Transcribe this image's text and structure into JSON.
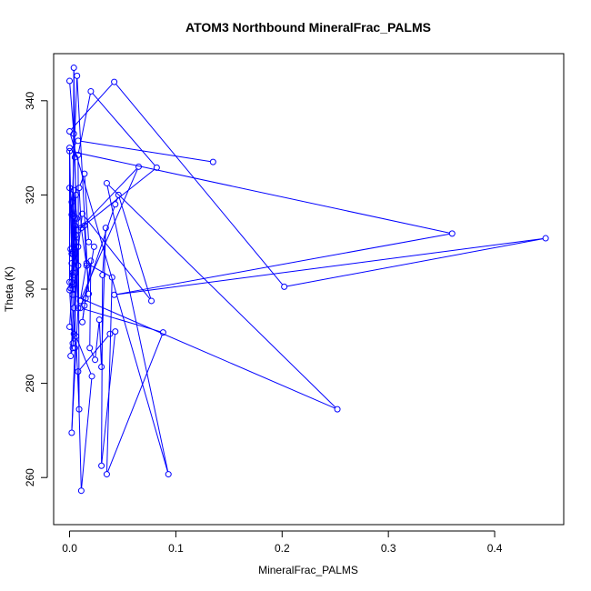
{
  "chart_data": {
    "type": "line",
    "title": "ATOM3 Northbound MineralFrac_PALMS",
    "xlabel": "MineralFrac_PALMS",
    "ylabel": "Theta (K)",
    "xlim": [
      -0.015,
      0.465
    ],
    "ylim": [
      250,
      350
    ],
    "x_ticks": [
      0.0,
      0.1,
      0.2,
      0.3,
      0.4
    ],
    "x_tick_labels": [
      "0.0",
      "0.1",
      "0.2",
      "0.3",
      "0.4"
    ],
    "y_ticks": [
      260,
      280,
      300,
      320,
      340
    ],
    "y_tick_labels": [
      "260",
      "280",
      "300",
      "320",
      "340"
    ],
    "grid": false,
    "series": [
      {
        "color": "#0000ff",
        "marker": "open-circle",
        "points": [
          [
            0.0,
            344.2
          ],
          [
            0.004,
            333.0
          ],
          [
            0.006,
            320.0
          ],
          [
            0.003,
            308.0
          ],
          [
            0.001,
            300.2
          ],
          [
            0.005,
            313.5
          ],
          [
            0.002,
            301.5
          ],
          [
            0.008,
            309.0
          ],
          [
            0.004,
            290.5
          ],
          [
            0.0,
            292.0
          ],
          [
            0.003,
            303.0
          ],
          [
            0.006,
            311.5
          ],
          [
            0.008,
            305.0
          ],
          [
            0.003,
            287.5
          ],
          [
            0.001,
            285.8
          ],
          [
            0.004,
            296.0
          ],
          [
            0.006,
            303.5
          ],
          [
            0.002,
            318.5
          ],
          [
            0.003,
            307.5
          ],
          [
            0.005,
            315.0
          ],
          [
            0.0,
            321.5
          ],
          [
            0.002,
            307.5
          ],
          [
            0.001,
            308.5
          ],
          [
            0.004,
            315.5
          ],
          [
            0.006,
            309.0
          ],
          [
            0.003,
            303.5
          ],
          [
            0.004,
            347.0
          ],
          [
            0.005,
            328.0
          ],
          [
            0.008,
            296.0
          ],
          [
            0.002,
            269.5
          ],
          [
            0.005,
            287.5
          ],
          [
            0.006,
            310.0
          ],
          [
            0.004,
            321.0
          ],
          [
            0.007,
            315.0
          ],
          [
            0.002,
            305.5
          ],
          [
            0.003,
            300.0
          ],
          [
            0.0,
            330.0
          ],
          [
            0.0,
            301.5
          ],
          [
            0.0,
            299.8
          ],
          [
            0.003,
            288.5
          ],
          [
            0.003,
            301.0
          ],
          [
            0.004,
            312.0
          ],
          [
            0.002,
            315.8
          ],
          [
            0.007,
            345.3
          ],
          [
            0.018,
            299.0
          ],
          [
            0.014,
            313.5
          ],
          [
            0.016,
            305.0
          ],
          [
            0.011,
            313.0
          ],
          [
            0.009,
            321.5
          ],
          [
            0.014,
            324.5
          ],
          [
            0.018,
            310.0
          ],
          [
            0.023,
            309.0
          ],
          [
            0.014,
            296.5
          ],
          [
            0.012,
            293.0
          ],
          [
            0.015,
            298.0
          ],
          [
            0.02,
            306.0
          ],
          [
            0.019,
            287.5
          ],
          [
            0.024,
            285.0
          ],
          [
            0.028,
            293.5
          ],
          [
            0.03,
            283.5
          ],
          [
            0.034,
            313.0
          ],
          [
            0.031,
            303.0
          ],
          [
            0.03,
            262.5
          ],
          [
            0.043,
            291.0
          ],
          [
            0.038,
            290.5
          ],
          [
            0.008,
            282.5
          ],
          [
            0.011,
            257.2
          ],
          [
            0.021,
            281.5
          ],
          [
            0.006,
            290.0
          ],
          [
            0.009,
            274.5
          ],
          [
            0.008,
            328.5
          ],
          [
            0.02,
            342.0
          ],
          [
            0.082,
            325.8
          ],
          [
            0.008,
            312.5
          ],
          [
            0.065,
            326.0
          ],
          [
            0.01,
            297.5
          ],
          [
            0.016,
            305.5
          ],
          [
            0.04,
            302.5
          ],
          [
            0.035,
            260.7
          ],
          [
            0.088,
            290.8
          ],
          [
            0.01,
            296.0
          ],
          [
            0.043,
            318.0
          ],
          [
            0.046,
            320.0
          ],
          [
            0.077,
            297.5
          ],
          [
            0.012,
            316.0
          ],
          [
            0.003,
            298.8
          ],
          [
            0.252,
            274.5
          ],
          [
            0.035,
            322.5
          ],
          [
            0.093,
            260.7
          ],
          [
            0.0,
            333.5
          ],
          [
            0.042,
            344.0
          ],
          [
            0.202,
            300.5
          ],
          [
            0.448,
            310.8
          ],
          [
            0.042,
            298.8
          ],
          [
            0.36,
            311.8
          ],
          [
            0.0,
            329.3
          ],
          [
            0.008,
            331.5
          ],
          [
            0.135,
            327.0
          ]
        ]
      }
    ]
  }
}
